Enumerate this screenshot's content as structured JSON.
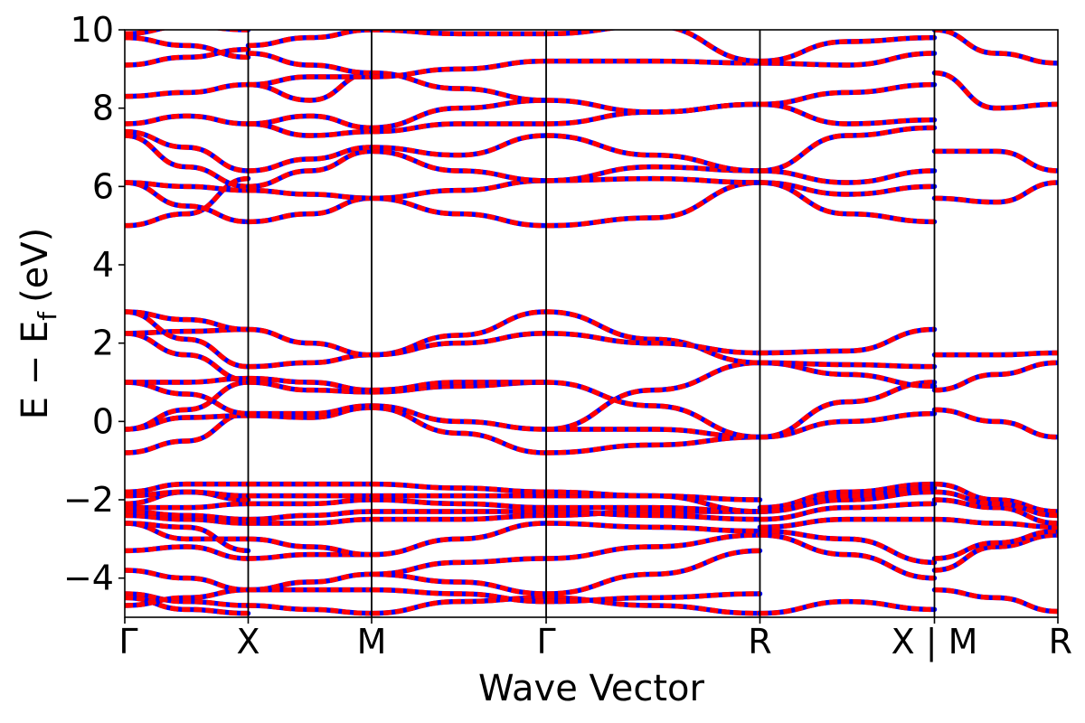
{
  "chart_data": {
    "type": "line",
    "xlabel": "Wave Vector",
    "ylabel_main": "E − E",
    "ylabel_sub": "f",
    "ylabel_unit": "(eV)",
    "ylim": [
      -5,
      10
    ],
    "yticks": [
      {
        "value": -4,
        "label": "−4"
      },
      {
        "value": -2,
        "label": "−2"
      },
      {
        "value": 0,
        "label": "0"
      },
      {
        "value": 2,
        "label": "2"
      },
      {
        "value": 4,
        "label": "4"
      },
      {
        "value": 6,
        "label": "6"
      },
      {
        "value": 8,
        "label": "8"
      },
      {
        "value": 10,
        "label": "10"
      }
    ],
    "kpoints": [
      {
        "k": 0.0,
        "label": "Γ"
      },
      {
        "k": 1.0,
        "label": "X"
      },
      {
        "k": 2.0,
        "label": "M"
      },
      {
        "k": 3.414,
        "label": "Γ"
      },
      {
        "k": 5.146,
        "label": "R"
      },
      {
        "k": 6.56,
        "label": "X | M"
      },
      {
        "k": 7.56,
        "label": "R"
      }
    ],
    "xlim": [
      0,
      7.56
    ],
    "grid": false,
    "legend": "none",
    "colors": {
      "spin_up": "#0000ff",
      "spin_down": "#ff0000"
    },
    "series": [
      {
        "seg": 0,
        "y": [
          -4.4,
          -4.6,
          -4.7
        ]
      },
      {
        "seg": 0,
        "y": [
          -4.5,
          -4.8,
          -4.9
        ]
      },
      {
        "seg": 0,
        "y": [
          -4.7,
          -4.5,
          -4.3
        ]
      },
      {
        "seg": 0,
        "y": [
          -3.8,
          -4.0,
          -4.3
        ]
      },
      {
        "seg": 0,
        "y": [
          -3.3,
          -3.2,
          -3.5
        ]
      },
      {
        "seg": 0,
        "y": [
          -2.6,
          -3.0,
          -3.0
        ]
      },
      {
        "seg": 0,
        "y": [
          -2.6,
          -2.7,
          -3.3
        ]
      },
      {
        "seg": 0,
        "y": [
          -2.4,
          -2.5,
          -2.6
        ]
      },
      {
        "seg": 0,
        "y": [
          -2.3,
          -2.4,
          -2.5
        ]
      },
      {
        "seg": 0,
        "y": [
          -2.2,
          -2.2,
          -2.1
        ]
      },
      {
        "seg": 0,
        "y": [
          -2.1,
          -1.8,
          -2.0
        ]
      },
      {
        "seg": 0,
        "y": [
          -1.9,
          -1.8,
          -1.9
        ]
      },
      {
        "seg": 0,
        "y": [
          -1.8,
          -1.6,
          -1.6
        ]
      },
      {
        "seg": 0,
        "y": [
          -0.8,
          -0.5,
          0.2
        ]
      },
      {
        "seg": 0,
        "y": [
          -0.2,
          0.1,
          0.15
        ]
      },
      {
        "seg": 0,
        "y": [
          -0.2,
          0.3,
          1.0
        ]
      },
      {
        "seg": 0,
        "y": [
          1.0,
          0.7,
          0.2
        ]
      },
      {
        "seg": 0,
        "y": [
          1.0,
          1.0,
          1.1
        ]
      },
      {
        "seg": 0,
        "y": [
          2.25,
          1.7,
          1.05
        ]
      },
      {
        "seg": 0,
        "y": [
          2.25,
          2.3,
          2.35
        ]
      },
      {
        "seg": 0,
        "y": [
          2.8,
          2.1,
          1.4
        ]
      },
      {
        "seg": 0,
        "y": [
          2.8,
          2.6,
          2.35
        ]
      },
      {
        "seg": 0,
        "y": [
          5.0,
          5.3,
          6.2
        ]
      },
      {
        "seg": 0,
        "y": [
          6.1,
          5.5,
          5.1
        ]
      },
      {
        "seg": 0,
        "y": [
          6.1,
          6.0,
          5.9
        ]
      },
      {
        "seg": 0,
        "y": [
          7.3,
          6.5,
          6.0
        ]
      },
      {
        "seg": 0,
        "y": [
          7.4,
          7.0,
          6.4
        ]
      },
      {
        "seg": 0,
        "y": [
          7.6,
          7.8,
          7.6
        ]
      },
      {
        "seg": 0,
        "y": [
          8.3,
          8.4,
          8.6
        ]
      },
      {
        "seg": 0,
        "y": [
          9.1,
          9.3,
          9.5
        ]
      },
      {
        "seg": 0,
        "y": [
          9.8,
          9.6,
          9.3
        ]
      },
      {
        "seg": 0,
        "y": [
          9.9,
          10.1,
          10.0
        ]
      },
      {
        "seg": 1,
        "y": [
          -4.7,
          -4.8,
          -4.9
        ]
      },
      {
        "seg": 1,
        "y": [
          -4.3,
          -4.3,
          -4.3
        ]
      },
      {
        "seg": 1,
        "y": [
          -4.3,
          -4.1,
          -3.9
        ]
      },
      {
        "seg": 1,
        "y": [
          -3.5,
          -3.4,
          -3.4
        ]
      },
      {
        "seg": 1,
        "y": [
          -3.0,
          -3.2,
          -3.4
        ]
      },
      {
        "seg": 1,
        "y": [
          -2.6,
          -2.6,
          -2.5
        ]
      },
      {
        "seg": 1,
        "y": [
          -2.5,
          -2.4,
          -2.3
        ]
      },
      {
        "seg": 1,
        "y": [
          -2.1,
          -2.1,
          -2.0
        ]
      },
      {
        "seg": 1,
        "y": [
          -1.9,
          -1.9,
          -1.9
        ]
      },
      {
        "seg": 1,
        "y": [
          -1.6,
          -1.6,
          -1.6
        ]
      },
      {
        "seg": 1,
        "y": [
          0.15,
          0.1,
          0.35
        ]
      },
      {
        "seg": 1,
        "y": [
          0.2,
          0.2,
          0.4
        ]
      },
      {
        "seg": 1,
        "y": [
          1.0,
          0.8,
          0.75
        ]
      },
      {
        "seg": 1,
        "y": [
          1.1,
          1.0,
          0.8
        ]
      },
      {
        "seg": 1,
        "y": [
          1.4,
          1.5,
          1.7
        ]
      },
      {
        "seg": 1,
        "y": [
          2.35,
          2.0,
          1.7
        ]
      },
      {
        "seg": 1,
        "y": [
          5.1,
          5.3,
          5.7
        ]
      },
      {
        "seg": 1,
        "y": [
          5.9,
          5.8,
          5.7
        ]
      },
      {
        "seg": 1,
        "y": [
          6.0,
          6.4,
          6.9
        ]
      },
      {
        "seg": 1,
        "y": [
          6.4,
          6.7,
          7.0
        ]
      },
      {
        "seg": 1,
        "y": [
          7.6,
          7.3,
          7.4
        ]
      },
      {
        "seg": 1,
        "y": [
          7.6,
          7.8,
          7.5
        ]
      },
      {
        "seg": 1,
        "y": [
          8.6,
          8.2,
          8.9
        ]
      },
      {
        "seg": 1,
        "y": [
          8.6,
          8.8,
          8.8
        ]
      },
      {
        "seg": 1,
        "y": [
          9.4,
          9.1,
          8.9
        ]
      },
      {
        "seg": 1,
        "y": [
          9.6,
          9.8,
          10.0
        ]
      },
      {
        "seg": 2,
        "y": [
          -4.9,
          -4.6,
          -4.5
        ]
      },
      {
        "seg": 2,
        "y": [
          -4.3,
          -4.4,
          -4.6
        ]
      },
      {
        "seg": 2,
        "y": [
          -3.9,
          -4.1,
          -4.4
        ]
      },
      {
        "seg": 2,
        "y": [
          -3.9,
          -3.6,
          -3.5
        ]
      },
      {
        "seg": 2,
        "y": [
          -3.4,
          -3.0,
          -2.6
        ]
      },
      {
        "seg": 2,
        "y": [
          -2.5,
          -2.5,
          -2.4
        ]
      },
      {
        "seg": 2,
        "y": [
          -2.3,
          -2.3,
          -2.3
        ]
      },
      {
        "seg": 2,
        "y": [
          -2.0,
          -2.1,
          -2.2
        ]
      },
      {
        "seg": 2,
        "y": [
          -1.9,
          -1.9,
          -1.9
        ]
      },
      {
        "seg": 2,
        "y": [
          -1.6,
          -1.7,
          -1.8
        ]
      },
      {
        "seg": 2,
        "y": [
          0.35,
          -0.3,
          -0.8
        ]
      },
      {
        "seg": 2,
        "y": [
          0.4,
          0.0,
          -0.2
        ]
      },
      {
        "seg": 2,
        "y": [
          0.75,
          0.9,
          1.0
        ]
      },
      {
        "seg": 2,
        "y": [
          0.8,
          1.0,
          1.0
        ]
      },
      {
        "seg": 2,
        "y": [
          1.7,
          2.2,
          2.8
        ]
      },
      {
        "seg": 2,
        "y": [
          1.7,
          2.0,
          2.25
        ]
      },
      {
        "seg": 2,
        "y": [
          5.7,
          5.3,
          5.0
        ]
      },
      {
        "seg": 2,
        "y": [
          5.7,
          5.9,
          6.15
        ]
      },
      {
        "seg": 2,
        "y": [
          6.9,
          6.4,
          6.15
        ]
      },
      {
        "seg": 2,
        "y": [
          7.0,
          6.8,
          7.3
        ]
      },
      {
        "seg": 2,
        "y": [
          7.4,
          7.6,
          7.6
        ]
      },
      {
        "seg": 2,
        "y": [
          7.5,
          8.0,
          8.2
        ]
      },
      {
        "seg": 2,
        "y": [
          8.9,
          8.5,
          8.2
        ]
      },
      {
        "seg": 2,
        "y": [
          8.8,
          9.0,
          9.2
        ]
      },
      {
        "seg": 2,
        "y": [
          10.0,
          9.9,
          9.9
        ]
      },
      {
        "seg": 3,
        "y": [
          -4.5,
          -4.7,
          -4.9
        ]
      },
      {
        "seg": 3,
        "y": [
          -4.6,
          -4.5,
          -4.4
        ]
      },
      {
        "seg": 3,
        "y": [
          -4.4,
          -3.9,
          -3.3
        ]
      },
      {
        "seg": 3,
        "y": [
          -3.5,
          -3.2,
          -2.9
        ]
      },
      {
        "seg": 3,
        "y": [
          -2.6,
          -2.7,
          -2.8
        ]
      },
      {
        "seg": 3,
        "y": [
          -2.4,
          -2.3,
          -2.3
        ]
      },
      {
        "seg": 3,
        "y": [
          -2.3,
          -2.4,
          -2.5
        ]
      },
      {
        "seg": 3,
        "y": [
          -2.2,
          -2.2,
          -2.3
        ]
      },
      {
        "seg": 3,
        "y": [
          -1.9,
          -1.9,
          -2.0
        ]
      },
      {
        "seg": 3,
        "y": [
          -1.8,
          -1.9,
          -2.3
        ]
      },
      {
        "seg": 3,
        "y": [
          -0.8,
          -0.6,
          -0.4
        ]
      },
      {
        "seg": 3,
        "y": [
          -0.2,
          -0.2,
          -0.4
        ]
      },
      {
        "seg": 3,
        "y": [
          1.0,
          0.4,
          -0.4
        ]
      },
      {
        "seg": 3,
        "y": [
          -0.2,
          0.8,
          1.5
        ]
      },
      {
        "seg": 3,
        "y": [
          2.8,
          2.1,
          1.5
        ]
      },
      {
        "seg": 3,
        "y": [
          2.25,
          2.0,
          1.75
        ]
      },
      {
        "seg": 3,
        "y": [
          5.0,
          5.2,
          6.1
        ]
      },
      {
        "seg": 3,
        "y": [
          6.15,
          6.2,
          6.1
        ]
      },
      {
        "seg": 3,
        "y": [
          6.15,
          6.5,
          6.4
        ]
      },
      {
        "seg": 3,
        "y": [
          7.3,
          6.8,
          6.4
        ]
      },
      {
        "seg": 3,
        "y": [
          7.6,
          7.9,
          8.1
        ]
      },
      {
        "seg": 3,
        "y": [
          8.2,
          7.9,
          8.1
        ]
      },
      {
        "seg": 3,
        "y": [
          9.2,
          9.2,
          9.15
        ]
      },
      {
        "seg": 3,
        "y": [
          9.9,
          10.1,
          9.2
        ]
      },
      {
        "seg": 4,
        "y": [
          -4.9,
          -4.6,
          -4.8
        ]
      },
      {
        "seg": 4,
        "y": [
          -2.9,
          -3.4,
          -4.0
        ]
      },
      {
        "seg": 4,
        "y": [
          -2.8,
          -3.0,
          -3.6
        ]
      },
      {
        "seg": 4,
        "y": [
          -2.7,
          -2.5,
          -2.5
        ]
      },
      {
        "seg": 4,
        "y": [
          -2.5,
          -2.2,
          -2.1
        ]
      },
      {
        "seg": 4,
        "y": [
          -2.3,
          -2.0,
          -1.8
        ]
      },
      {
        "seg": 4,
        "y": [
          -2.2,
          -1.8,
          -1.6
        ]
      },
      {
        "seg": 4,
        "y": [
          -2.3,
          -1.9,
          -1.7
        ]
      },
      {
        "seg": 4,
        "y": [
          -0.4,
          0.0,
          0.2
        ]
      },
      {
        "seg": 4,
        "y": [
          -0.4,
          0.5,
          1.0
        ]
      },
      {
        "seg": 4,
        "y": [
          1.5,
          1.2,
          0.9
        ]
      },
      {
        "seg": 4,
        "y": [
          1.5,
          1.45,
          1.4
        ]
      },
      {
        "seg": 4,
        "y": [
          1.75,
          1.8,
          2.35
        ]
      },
      {
        "seg": 4,
        "y": [
          6.1,
          5.3,
          5.1
        ]
      },
      {
        "seg": 4,
        "y": [
          6.1,
          5.8,
          6.0
        ]
      },
      {
        "seg": 4,
        "y": [
          6.4,
          6.1,
          6.4
        ]
      },
      {
        "seg": 4,
        "y": [
          6.4,
          7.3,
          7.5
        ]
      },
      {
        "seg": 4,
        "y": [
          8.1,
          7.6,
          7.7
        ]
      },
      {
        "seg": 4,
        "y": [
          8.1,
          8.4,
          8.6
        ]
      },
      {
        "seg": 4,
        "y": [
          9.15,
          9.1,
          9.4
        ]
      },
      {
        "seg": 4,
        "y": [
          9.2,
          9.7,
          9.8
        ]
      },
      {
        "seg": 5,
        "y": [
          -4.3,
          -4.5,
          -4.85
        ]
      },
      {
        "seg": 5,
        "y": [
          -3.8,
          -3.2,
          -2.9
        ]
      },
      {
        "seg": 5,
        "y": [
          -3.5,
          -3.1,
          -2.8
        ]
      },
      {
        "seg": 5,
        "y": [
          -2.5,
          -2.6,
          -2.7
        ]
      },
      {
        "seg": 5,
        "y": [
          -2.0,
          -2.2,
          -2.6
        ]
      },
      {
        "seg": 5,
        "y": [
          -1.6,
          -2.0,
          -2.3
        ]
      },
      {
        "seg": 5,
        "y": [
          -1.8,
          -2.1,
          -2.4
        ]
      },
      {
        "seg": 5,
        "y": [
          0.3,
          0.0,
          -0.4
        ]
      },
      {
        "seg": 5,
        "y": [
          0.8,
          1.2,
          1.5
        ]
      },
      {
        "seg": 5,
        "y": [
          1.7,
          1.7,
          1.75
        ]
      },
      {
        "seg": 5,
        "y": [
          5.7,
          5.6,
          6.1
        ]
      },
      {
        "seg": 5,
        "y": [
          6.9,
          6.9,
          6.4
        ]
      },
      {
        "seg": 5,
        "y": [
          8.9,
          8.0,
          8.1
        ]
      },
      {
        "seg": 5,
        "y": [
          10.0,
          9.4,
          9.15
        ]
      }
    ]
  }
}
